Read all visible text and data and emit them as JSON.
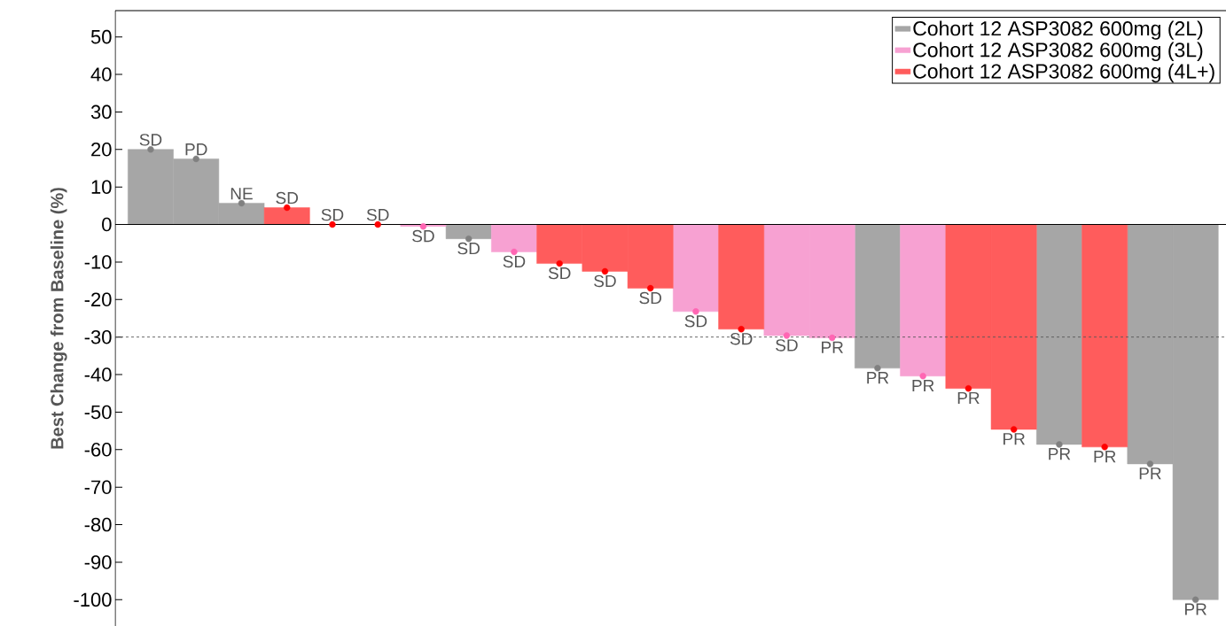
{
  "chart_data": {
    "type": "bar",
    "ylabel": "Best Change from Baseline (%)",
    "categories": [
      null,
      null,
      null,
      null,
      null,
      null,
      null,
      null,
      null,
      null,
      null,
      null,
      null,
      null,
      null,
      null,
      null,
      null,
      null,
      null,
      null,
      null,
      null,
      null
    ],
    "series": [
      {
        "name": "Cohort 12 ASP3082 600mg (2L)",
        "color": "#a6a6a6",
        "values": [
          20,
          17.5,
          5.7,
          null,
          null,
          null,
          null,
          -3.8,
          null,
          null,
          null,
          null,
          null,
          null,
          null,
          null,
          -38.3,
          null,
          null,
          null,
          -58.6,
          null,
          -63.8,
          -100
        ],
        "value_labels": [
          "SD",
          "PD",
          "NE",
          null,
          null,
          null,
          null,
          "SD",
          null,
          null,
          null,
          null,
          null,
          null,
          null,
          null,
          "PR",
          null,
          null,
          null,
          "PR",
          null,
          "PR",
          "PR"
        ]
      },
      {
        "name": "Cohort 12 ASP3082 600mg (3L)",
        "color": "#f7a1d2",
        "values": [
          null,
          null,
          null,
          null,
          null,
          null,
          -0.5,
          null,
          -7.3,
          null,
          null,
          null,
          -23.2,
          null,
          -29.6,
          -30.2,
          null,
          -40.4,
          null,
          null,
          null,
          null,
          null,
          null
        ],
        "value_labels": [
          null,
          null,
          null,
          null,
          null,
          null,
          "SD",
          null,
          "SD",
          null,
          null,
          null,
          "SD",
          null,
          "SD",
          "PR",
          null,
          "PR",
          null,
          null,
          null,
          null,
          null,
          null
        ]
      },
      {
        "name": "Cohort 12 ASP3082 600mg (4L+)",
        "color": "#ff5c5c",
        "values": [
          null,
          null,
          null,
          4.5,
          0,
          0,
          null,
          null,
          null,
          -10.4,
          -12.5,
          -17,
          null,
          -27.9,
          null,
          null,
          null,
          null,
          -43.7,
          -54.6,
          null,
          -59.3,
          null,
          null
        ],
        "value_labels": [
          null,
          null,
          null,
          "SD",
          "SD",
          "SD",
          null,
          null,
          null,
          "SD",
          "SD",
          "SD",
          null,
          "SD",
          null,
          null,
          null,
          null,
          "PR",
          "PR",
          null,
          "PR",
          null,
          null
        ]
      },
      {
        "type": "scatter",
        "color": "#808080",
        "values": [
          20,
          17.5,
          5.7,
          null,
          null,
          null,
          null,
          -3.8,
          null,
          null,
          null,
          null,
          null,
          null,
          null,
          null,
          -38.3,
          null,
          null,
          null,
          -58.6,
          null,
          -63.8,
          -100
        ]
      },
      {
        "type": "scatter",
        "color": "#ff66b3",
        "values": [
          null,
          null,
          null,
          null,
          null,
          null,
          -0.5,
          null,
          -7.3,
          null,
          null,
          null,
          -23.2,
          null,
          -29.6,
          -30.2,
          null,
          -40.4,
          null,
          null,
          null,
          null,
          null,
          null
        ]
      },
      {
        "type": "scatter",
        "color": "#ff0000",
        "values": [
          null,
          null,
          null,
          4.5,
          0,
          0,
          null,
          null,
          null,
          -10.4,
          -12.5,
          -17,
          null,
          -27.9,
          null,
          null,
          null,
          null,
          -43.7,
          -54.6,
          null,
          -59.3,
          null,
          null
        ]
      }
    ],
    "ylim": [
      -107,
      57
    ],
    "yticks": [
      50,
      40,
      30,
      20,
      10,
      0,
      -10,
      -20,
      -30,
      -40,
      -50,
      -60,
      -70,
      -80,
      -90,
      -100
    ],
    "ref_lines": [
      {
        "axis": "y",
        "value": -30,
        "line_style": "dashed",
        "color": "#555555"
      }
    ],
    "marker": "circle",
    "legend": "top right",
    "grid": false
  }
}
